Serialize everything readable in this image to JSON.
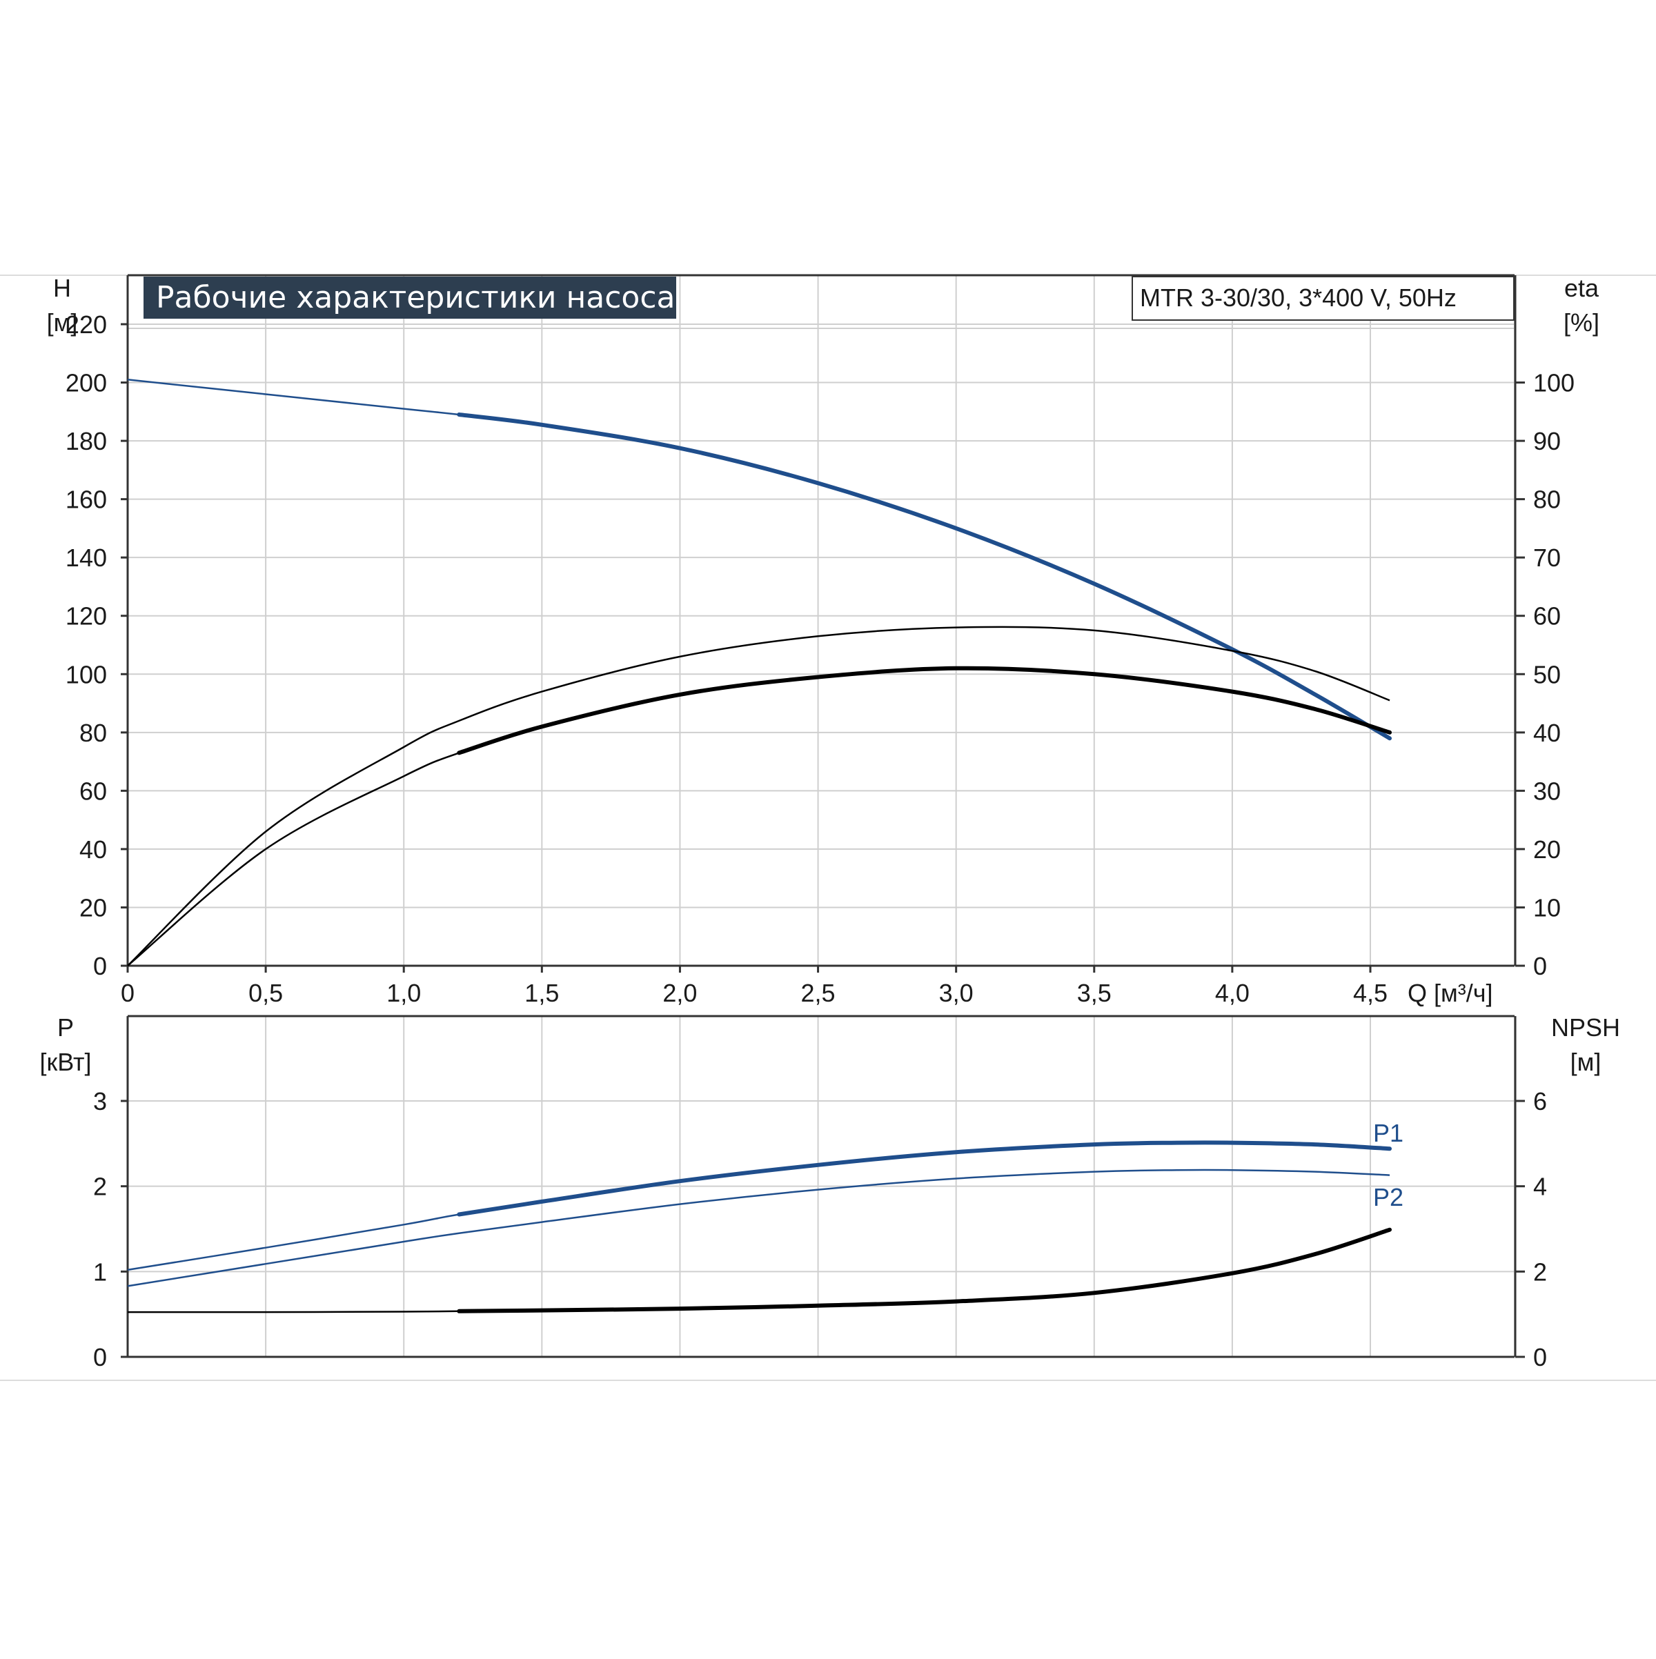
{
  "chart_data": [
    {
      "type": "line",
      "title": "Рабочие характеристики насоса",
      "model_label": "MTR 3-30/30, 3*400 V, 50Hz",
      "xlabel": "Q [м³/ч]",
      "ylabel": "H",
      "ylabel_unit": "[м]",
      "y2label": "eta",
      "y2label_unit": "[%]",
      "xlim": [
        0,
        5.0
      ],
      "ylim": [
        0,
        240
      ],
      "y2lim": [
        0,
        120
      ],
      "x_ticks": [
        0,
        0.5,
        1.0,
        1.5,
        2.0,
        2.5,
        3.0,
        3.5,
        4.0,
        4.5
      ],
      "x_tick_labels": [
        "0",
        "0,5",
        "1,0",
        "1,5",
        "2,0",
        "2,5",
        "3,0",
        "3,5",
        "4,0",
        "4,5"
      ],
      "y_ticks": [
        0,
        20,
        40,
        60,
        80,
        100,
        120,
        140,
        160,
        180,
        200,
        220
      ],
      "y_tick_labels": [
        "0",
        "20",
        "40",
        "60",
        "80",
        "100",
        "120",
        "140",
        "160",
        "180",
        "200",
        "220"
      ],
      "y2_ticks": [
        0,
        10,
        20,
        30,
        40,
        50,
        60,
        70,
        80,
        90,
        100
      ],
      "y2_tick_labels": [
        "0",
        "10",
        "20",
        "30",
        "40",
        "50",
        "60",
        "70",
        "80",
        "90",
        "100"
      ],
      "grid": true,
      "series": [
        {
          "axis": "left",
          "color": "#1f4e8c",
          "x": [
            0,
            0.5,
            1.0,
            1.2,
            1.5,
            2.0,
            2.5,
            3.0,
            3.5,
            4.0,
            4.3,
            4.57
          ],
          "values": [
            201,
            196,
            191,
            189,
            185.5,
            177.5,
            165.5,
            150,
            131,
            108.5,
            93,
            78
          ]
        },
        {
          "axis": "right",
          "color": "#000000",
          "x": [
            0,
            0.5,
            1.0,
            1.2,
            1.5,
            2.0,
            2.5,
            3.0,
            3.5,
            4.0,
            4.3,
            4.57
          ],
          "values": [
            0,
            23,
            37.5,
            42,
            47,
            53,
            56.5,
            58,
            57.5,
            54,
            50.5,
            45.5
          ]
        },
        {
          "axis": "right",
          "color": "#000000",
          "x": [
            0,
            0.5,
            1.0,
            1.2,
            1.5,
            2.0,
            2.5,
            3.0,
            3.5,
            4.0,
            4.3,
            4.57
          ],
          "values": [
            0,
            20,
            32.5,
            36.5,
            41,
            46.5,
            49.5,
            51,
            50,
            47,
            44,
            40
          ]
        }
      ]
    },
    {
      "type": "line",
      "ylabel": "P",
      "ylabel_unit": "[кВт]",
      "y2label": "NPSH",
      "y2label_unit": "[м]",
      "xlim": [
        0,
        5.0
      ],
      "ylim": [
        0,
        3.6
      ],
      "y2lim": [
        0,
        7.2
      ],
      "y_ticks": [
        0,
        1,
        2,
        3
      ],
      "y_tick_labels": [
        "0",
        "1",
        "2",
        "3"
      ],
      "y2_ticks": [
        0,
        2,
        4,
        6
      ],
      "y2_tick_labels": [
        "0",
        "2",
        "4",
        "6"
      ],
      "grid": true,
      "series": [
        {
          "name": "P1",
          "axis": "left",
          "color": "#1f4e8c",
          "x": [
            0,
            0.5,
            1.0,
            1.2,
            1.5,
            2.0,
            2.5,
            3.0,
            3.5,
            3.8,
            4.0,
            4.3,
            4.57
          ],
          "values": [
            1.02,
            1.28,
            1.55,
            1.67,
            1.82,
            2.06,
            2.25,
            2.4,
            2.49,
            2.51,
            2.51,
            2.49,
            2.44
          ]
        },
        {
          "name": "P2",
          "axis": "left",
          "color": "#1f4e8c",
          "x": [
            0,
            0.5,
            1.0,
            1.2,
            1.5,
            2.0,
            2.5,
            3.0,
            3.5,
            3.8,
            4.0,
            4.3,
            4.57
          ],
          "values": [
            0.83,
            1.09,
            1.35,
            1.45,
            1.58,
            1.79,
            1.96,
            2.09,
            2.17,
            2.19,
            2.19,
            2.17,
            2.13
          ]
        },
        {
          "axis": "right",
          "color": "#000000",
          "x": [
            0,
            0.5,
            1.0,
            1.2,
            1.5,
            2.0,
            2.5,
            3.0,
            3.5,
            4.0,
            4.3,
            4.57
          ],
          "values": [
            1.05,
            1.05,
            1.06,
            1.07,
            1.09,
            1.13,
            1.2,
            1.3,
            1.5,
            1.96,
            2.41,
            2.98
          ]
        }
      ]
    }
  ]
}
